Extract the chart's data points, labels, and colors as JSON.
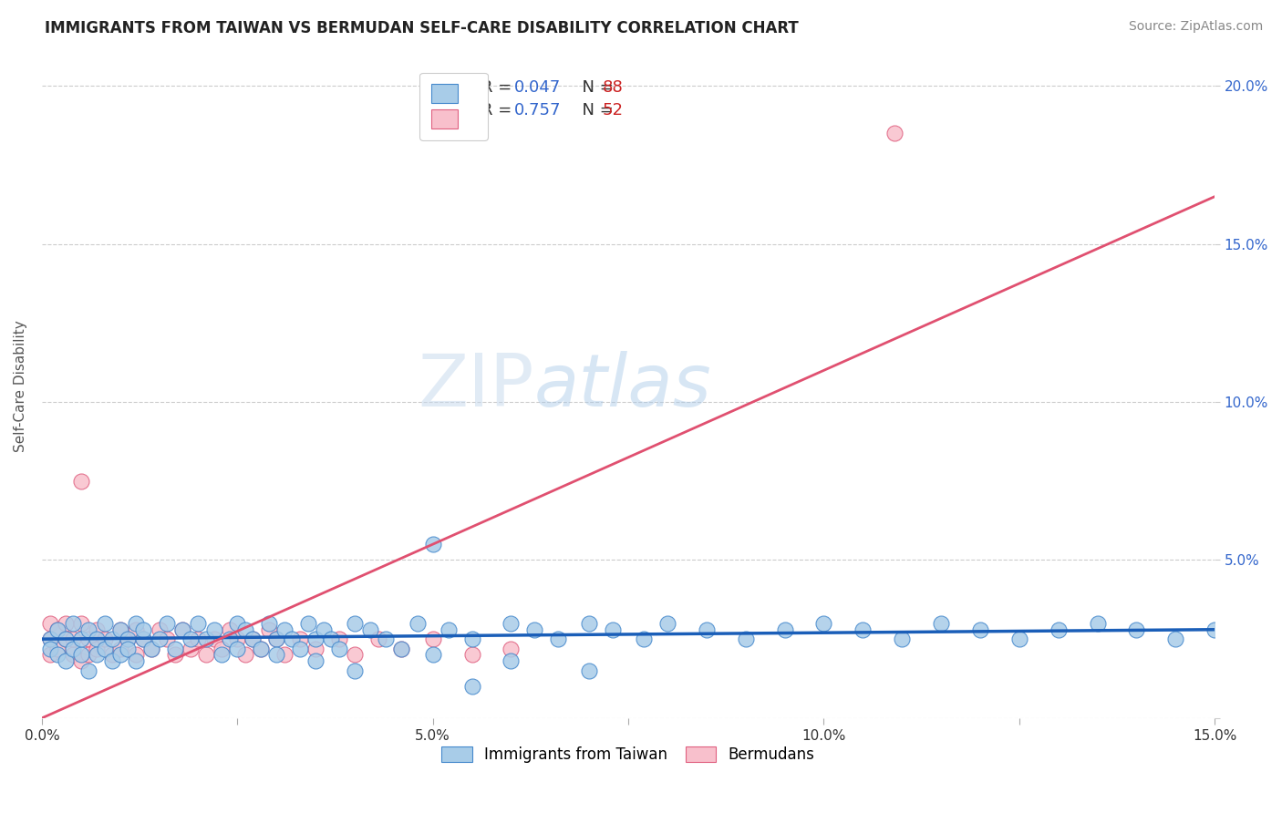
{
  "title": "IMMIGRANTS FROM TAIWAN VS BERMUDAN SELF-CARE DISABILITY CORRELATION CHART",
  "source": "Source: ZipAtlas.com",
  "ylabel": "Self-Care Disability",
  "xlim": [
    0.0,
    0.15
  ],
  "ylim": [
    0.0,
    0.21
  ],
  "x_ticks": [
    0.0,
    0.025,
    0.05,
    0.075,
    0.1,
    0.125,
    0.15
  ],
  "x_tick_labels": [
    "0.0%",
    "",
    "5.0%",
    "",
    "10.0%",
    "",
    "15.0%"
  ],
  "y_ticks": [
    0.0,
    0.05,
    0.1,
    0.15,
    0.2
  ],
  "y_tick_labels": [
    "",
    "5.0%",
    "10.0%",
    "15.0%",
    "20.0%"
  ],
  "taiwan_R": 0.047,
  "taiwan_N": 88,
  "bermuda_R": 0.757,
  "bermuda_N": 52,
  "taiwan_color": "#a8cce8",
  "bermuda_color": "#f8c0cc",
  "taiwan_edge_color": "#4488cc",
  "bermuda_edge_color": "#e06080",
  "taiwan_line_color": "#1a5eb8",
  "bermuda_line_color": "#e05070",
  "background_color": "#ffffff",
  "grid_color": "#cccccc",
  "watermark_zip": "ZIP",
  "watermark_atlas": "atlas",
  "legend_color": "#3366cc",
  "legend_N_color": "#cc2222",
  "title_color": "#222222",
  "source_color": "#888888",
  "ylabel_color": "#555555",
  "right_tick_color": "#3366cc",
  "taiwan_line_y0": 0.025,
  "taiwan_line_y1": 0.028,
  "bermuda_line_y0": 0.0,
  "bermuda_line_y1": 0.165,
  "taiwan_x": [
    0.001,
    0.001,
    0.002,
    0.002,
    0.003,
    0.003,
    0.004,
    0.004,
    0.005,
    0.005,
    0.006,
    0.006,
    0.007,
    0.007,
    0.008,
    0.008,
    0.009,
    0.009,
    0.01,
    0.01,
    0.011,
    0.011,
    0.012,
    0.012,
    0.013,
    0.013,
    0.014,
    0.015,
    0.016,
    0.017,
    0.018,
    0.019,
    0.02,
    0.021,
    0.022,
    0.023,
    0.024,
    0.025,
    0.026,
    0.027,
    0.028,
    0.029,
    0.03,
    0.031,
    0.032,
    0.033,
    0.034,
    0.035,
    0.036,
    0.037,
    0.038,
    0.04,
    0.042,
    0.044,
    0.046,
    0.048,
    0.05,
    0.052,
    0.055,
    0.06,
    0.063,
    0.066,
    0.07,
    0.073,
    0.077,
    0.08,
    0.085,
    0.09,
    0.095,
    0.1,
    0.105,
    0.11,
    0.115,
    0.12,
    0.125,
    0.13,
    0.135,
    0.14,
    0.145,
    0.15,
    0.025,
    0.03,
    0.035,
    0.04,
    0.05,
    0.06,
    0.07,
    0.055
  ],
  "taiwan_y": [
    0.025,
    0.022,
    0.028,
    0.02,
    0.025,
    0.018,
    0.03,
    0.022,
    0.02,
    0.025,
    0.028,
    0.015,
    0.025,
    0.02,
    0.03,
    0.022,
    0.025,
    0.018,
    0.028,
    0.02,
    0.025,
    0.022,
    0.03,
    0.018,
    0.025,
    0.028,
    0.022,
    0.025,
    0.03,
    0.022,
    0.028,
    0.025,
    0.03,
    0.025,
    0.028,
    0.02,
    0.025,
    0.03,
    0.028,
    0.025,
    0.022,
    0.03,
    0.025,
    0.028,
    0.025,
    0.022,
    0.03,
    0.025,
    0.028,
    0.025,
    0.022,
    0.03,
    0.028,
    0.025,
    0.022,
    0.03,
    0.055,
    0.028,
    0.025,
    0.03,
    0.028,
    0.025,
    0.03,
    0.028,
    0.025,
    0.03,
    0.028,
    0.025,
    0.028,
    0.03,
    0.028,
    0.025,
    0.03,
    0.028,
    0.025,
    0.028,
    0.03,
    0.028,
    0.025,
    0.028,
    0.022,
    0.02,
    0.018,
    0.015,
    0.02,
    0.018,
    0.015,
    0.01
  ],
  "bermuda_x": [
    0.001,
    0.001,
    0.001,
    0.002,
    0.002,
    0.003,
    0.003,
    0.004,
    0.004,
    0.005,
    0.005,
    0.006,
    0.006,
    0.007,
    0.007,
    0.008,
    0.009,
    0.01,
    0.01,
    0.011,
    0.012,
    0.012,
    0.013,
    0.014,
    0.015,
    0.016,
    0.017,
    0.018,
    0.019,
    0.02,
    0.021,
    0.022,
    0.023,
    0.024,
    0.025,
    0.026,
    0.027,
    0.028,
    0.029,
    0.03,
    0.031,
    0.033,
    0.035,
    0.038,
    0.04,
    0.043,
    0.046,
    0.05,
    0.055,
    0.06,
    0.005,
    0.109
  ],
  "bermuda_y": [
    0.025,
    0.02,
    0.03,
    0.028,
    0.022,
    0.025,
    0.03,
    0.02,
    0.025,
    0.018,
    0.03,
    0.025,
    0.02,
    0.028,
    0.022,
    0.025,
    0.02,
    0.028,
    0.022,
    0.025,
    0.028,
    0.02,
    0.025,
    0.022,
    0.028,
    0.025,
    0.02,
    0.028,
    0.022,
    0.025,
    0.02,
    0.025,
    0.022,
    0.028,
    0.025,
    0.02,
    0.025,
    0.022,
    0.028,
    0.025,
    0.02,
    0.025,
    0.022,
    0.025,
    0.02,
    0.025,
    0.022,
    0.025,
    0.02,
    0.022,
    0.075,
    0.185
  ]
}
